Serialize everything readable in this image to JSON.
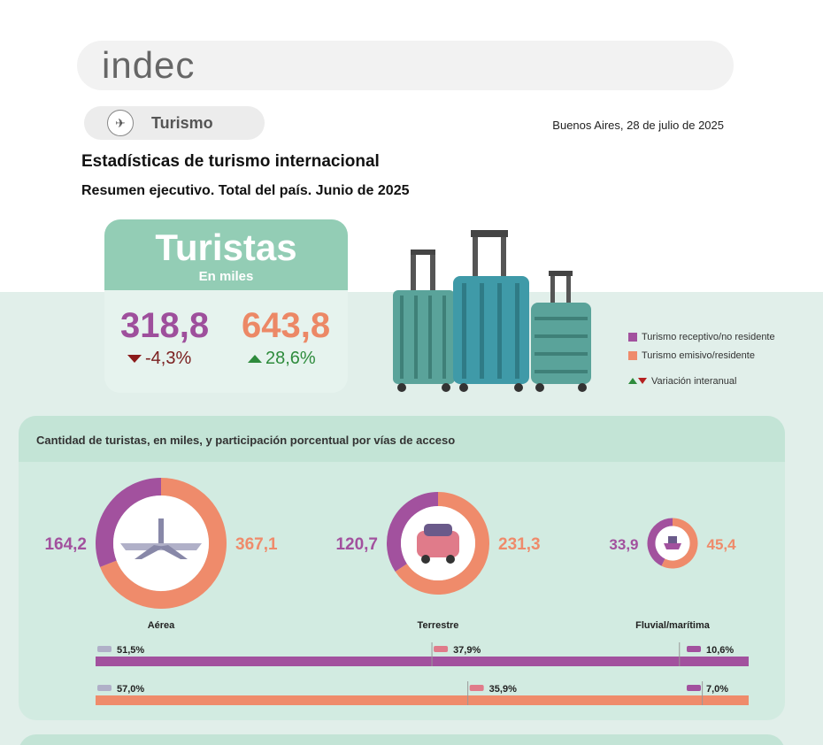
{
  "header": {
    "logo": "indec"
  },
  "section": {
    "label": "Turismo",
    "icon": "plane-icon"
  },
  "date": "Buenos Aires, 28 de julio de 2025",
  "title": "Estadísticas de turismo internacional",
  "subtitle": "Resumen ejecutivo. Total del país. Junio de 2025",
  "tourists_card": {
    "title": "Turistas",
    "unit": "En miles",
    "receptive_value": "318,8",
    "emissive_value": "643,8",
    "receptive_variation": "-4,3%",
    "emissive_variation": "28,6%"
  },
  "legend": {
    "receptive": "Turismo receptivo/no residente",
    "emissive": "Turismo emisivo/residente",
    "variation": "Variación interanual"
  },
  "colors": {
    "receptive": "#a2519e",
    "emissive": "#ef8b6b",
    "band": "#e1efea",
    "card_head": "#93cdb5"
  },
  "chart_data": [
    {
      "type": "pie",
      "title": "Cantidad de turistas, en miles, y participación porcentual por vías de acceso",
      "categories": [
        "Aérea",
        "Terrestre",
        "Fluvial/marítima"
      ],
      "series": [
        {
          "name": "Turismo receptivo/no residente",
          "values": [
            164.2,
            120.7,
            33.9
          ],
          "labels": [
            "164,2",
            "120,7",
            "33,9"
          ]
        },
        {
          "name": "Turismo emisivo/residente",
          "values": [
            367.1,
            231.3,
            45.4
          ],
          "labels": [
            "367,1",
            "231,3",
            "45,4"
          ]
        }
      ]
    },
    {
      "type": "bar",
      "stacked": true,
      "categories": [
        "Aérea",
        "Terrestre",
        "Fluvial/marítima"
      ],
      "series": [
        {
          "name": "Turismo receptivo/no residente",
          "values": [
            51.5,
            37.9,
            10.6
          ],
          "labels": [
            "51,5%",
            "37,9%",
            "10,6%"
          ]
        },
        {
          "name": "Turismo emisivo/residente",
          "values": [
            57.0,
            35.9,
            7.0
          ],
          "labels": [
            "57,0%",
            "35,9%",
            "7,0%"
          ]
        }
      ]
    }
  ]
}
